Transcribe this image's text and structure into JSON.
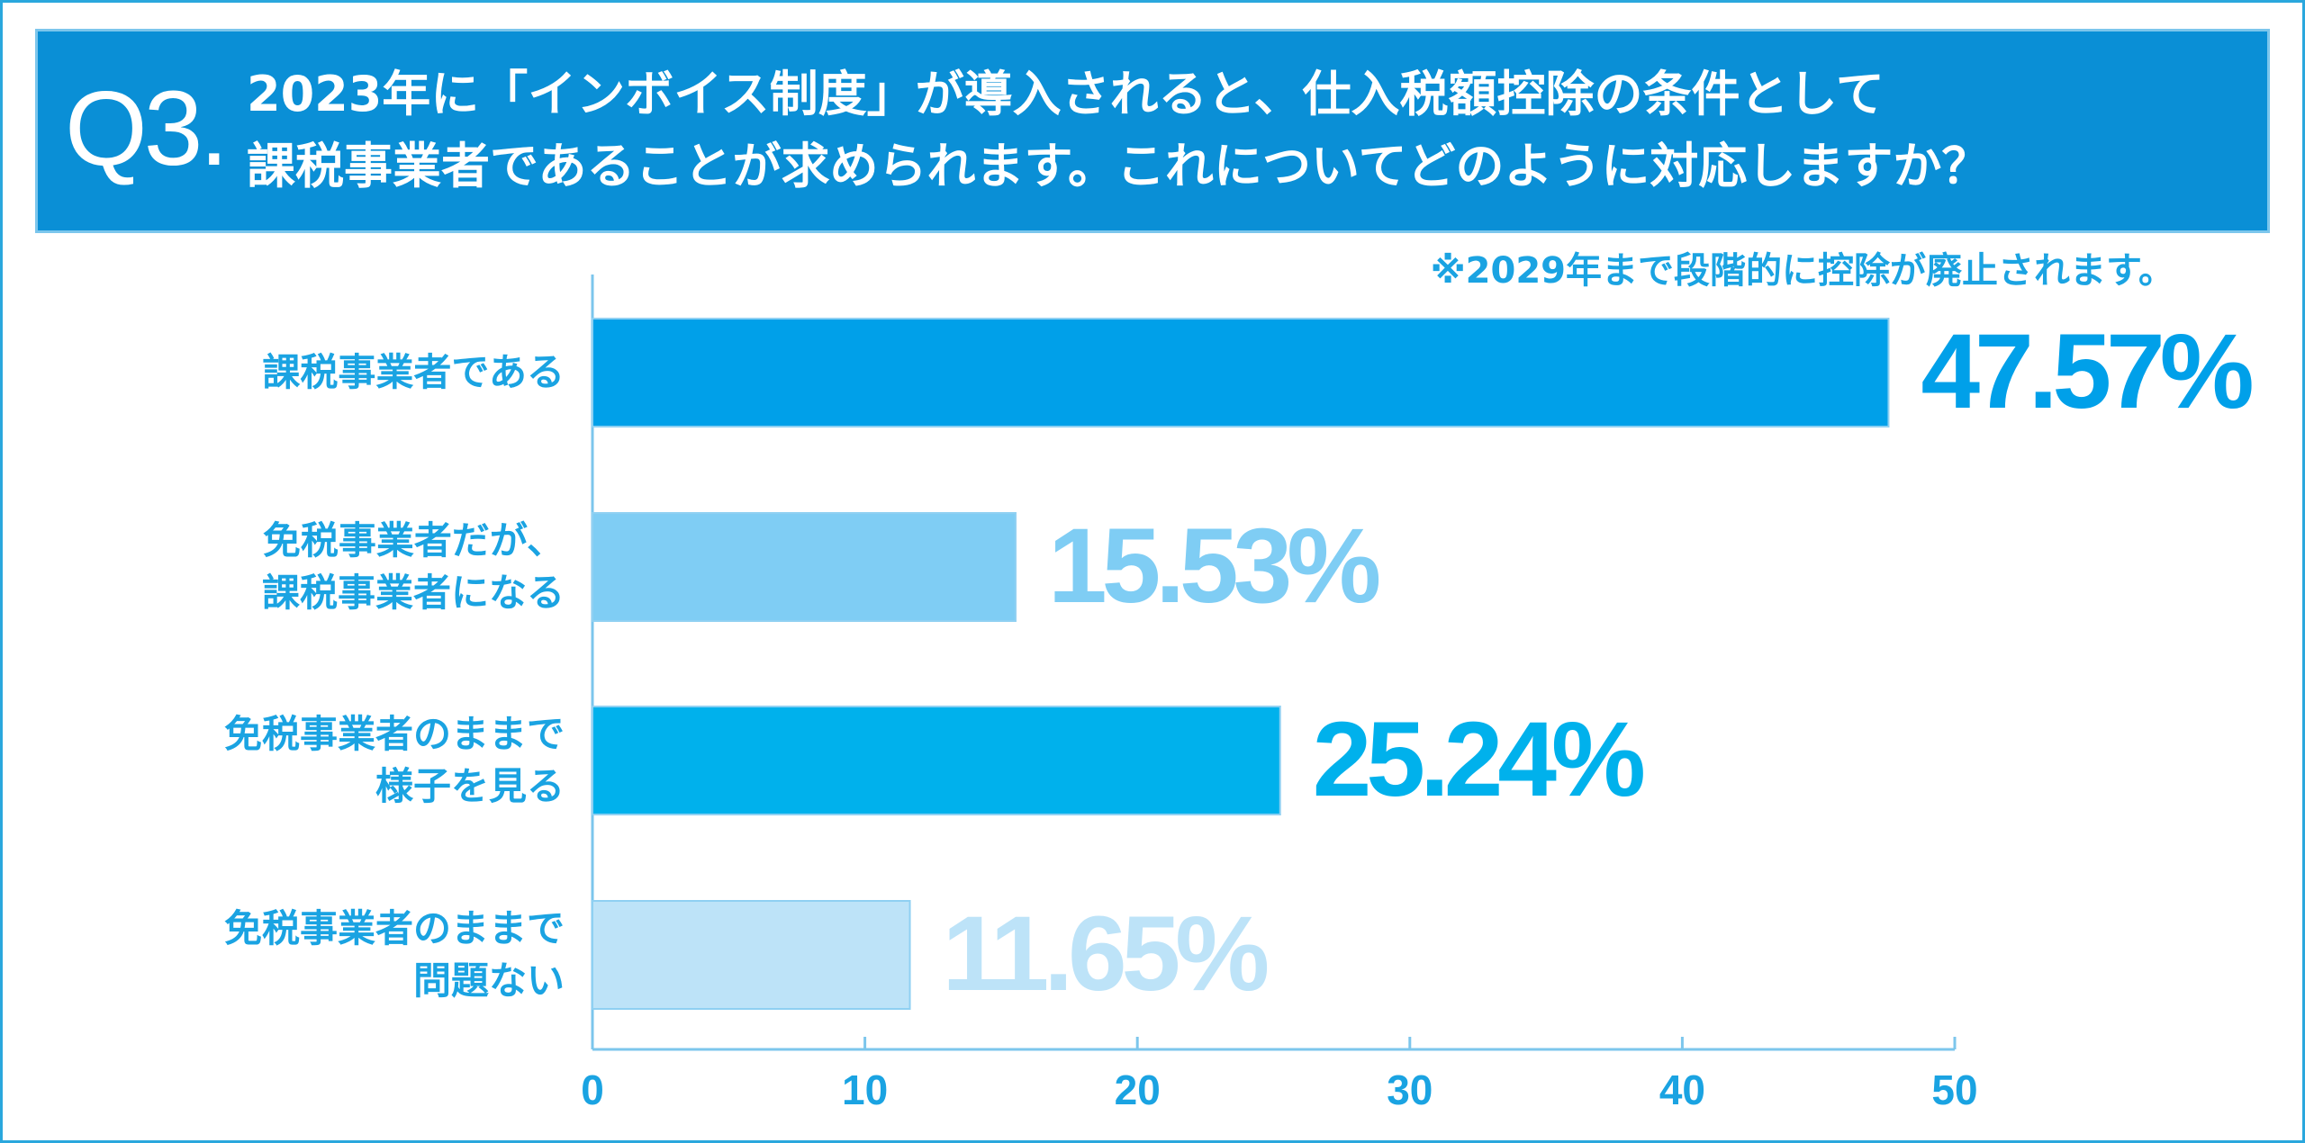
{
  "chart_data": {
    "type": "bar",
    "orientation": "horizontal",
    "question_number": "Q3.",
    "title": "2023年に「インボイス制度」が導入されると、仕入税額控除の条件として\n課税事業者であることが求められます。これについてどのように対応しますか？",
    "annotation": "※2029年まで段階的に控除が廃止されます。",
    "categories": [
      "課税事業者である",
      "免税事業者だが、\n課税事業者になる",
      "免税事業者のままで\n様子を見る",
      "免税事業者のままで\n問題ない"
    ],
    "values": [
      47.57,
      15.53,
      25.24,
      11.65
    ],
    "value_labels": [
      "47.57%",
      "15.53%",
      "25.24%",
      "11.65%"
    ],
    "colors": [
      "#00a0e9",
      "#7fcdf4",
      "#00b1ec",
      "#bde3f8"
    ],
    "xlim": [
      0,
      50
    ],
    "xticks": [
      0,
      10,
      20,
      30,
      40,
      50
    ]
  }
}
